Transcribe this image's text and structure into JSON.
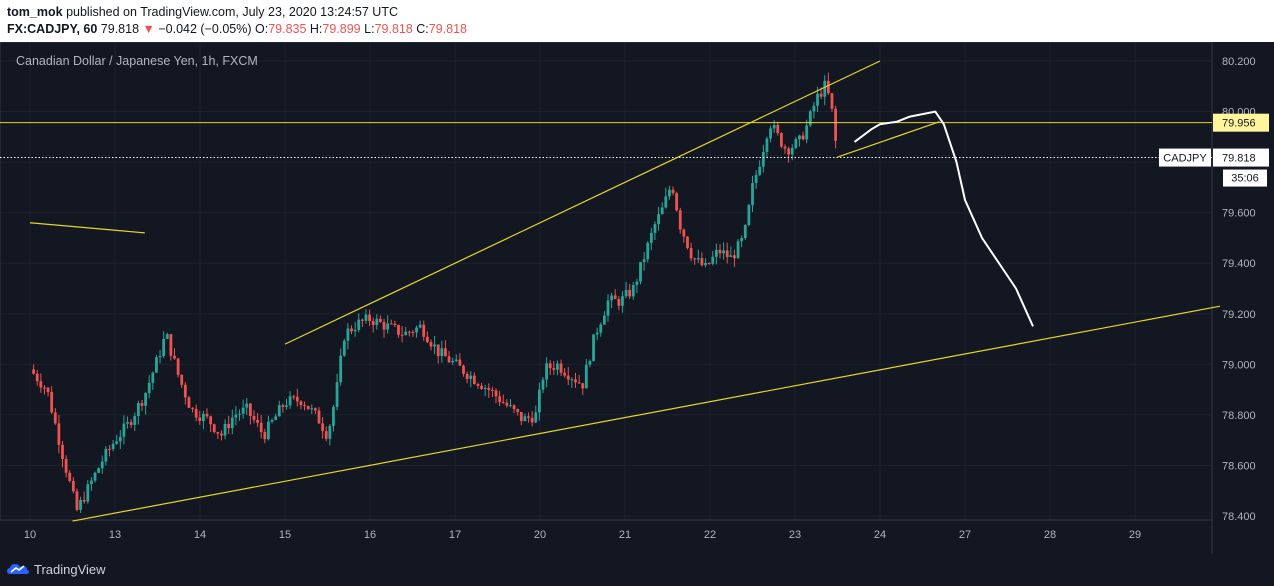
{
  "header": {
    "author": "tom_mok",
    "published_text": "published on TradingView.com, July 23, 2020 13:24:57 UTC",
    "symbol_interval": "FX:CADJPY, 60",
    "last": "79.818",
    "arrow": "▼",
    "change": "−0.042 (−0.05%)",
    "o_label": "O:",
    "o_val": "79.835",
    "h_label": "H:",
    "h_val": "79.899",
    "l_label": "L:",
    "l_val": "79.818",
    "c_label": "C:",
    "c_val": "79.818"
  },
  "footer": {
    "brand": "TradingView"
  },
  "chart_data": {
    "type": "candlestick",
    "title": "Canadian Dollar / Japanese Yen, 1h, FXCM",
    "ylim": [
      78.37,
      80.27
    ],
    "y_ticks": [
      "80.200",
      "80.000",
      "79.800",
      "79.600",
      "79.400",
      "79.200",
      "79.000",
      "78.800",
      "78.600",
      "78.400"
    ],
    "y_tick_values": [
      80.2,
      80.0,
      79.8,
      79.6,
      79.4,
      79.2,
      79.0,
      78.8,
      78.6,
      78.4
    ],
    "x_ticks": [
      {
        "label": "10",
        "i": 0
      },
      {
        "label": "13",
        "i": 1
      },
      {
        "label": "14",
        "i": 2
      },
      {
        "label": "15",
        "i": 3
      },
      {
        "label": "16",
        "i": 4
      },
      {
        "label": "17",
        "i": 5
      },
      {
        "label": "20",
        "i": 6
      },
      {
        "label": "21",
        "i": 7
      },
      {
        "label": "22",
        "i": 8
      },
      {
        "label": "23",
        "i": 9
      },
      {
        "label": "24",
        "i": 10
      },
      {
        "label": "27",
        "i": 11
      },
      {
        "label": "28",
        "i": 12
      },
      {
        "label": "29",
        "i": 13
      }
    ],
    "price_path": [
      [
        0.0,
        78.98
      ],
      [
        0.2,
        78.9
      ],
      [
        0.4,
        78.62
      ],
      [
        0.55,
        78.42
      ],
      [
        0.7,
        78.52
      ],
      [
        0.85,
        78.62
      ],
      [
        1.0,
        78.7
      ],
      [
        1.15,
        78.76
      ],
      [
        1.35,
        78.88
      ],
      [
        1.5,
        79.02
      ],
      [
        1.6,
        79.12
      ],
      [
        1.75,
        78.95
      ],
      [
        1.9,
        78.82
      ],
      [
        2.1,
        78.78
      ],
      [
        2.25,
        78.72
      ],
      [
        2.4,
        78.8
      ],
      [
        2.55,
        78.82
      ],
      [
        2.75,
        78.72
      ],
      [
        3.0,
        78.85
      ],
      [
        3.2,
        78.86
      ],
      [
        3.4,
        78.78
      ],
      [
        3.5,
        78.72
      ],
      [
        3.6,
        78.88
      ],
      [
        3.7,
        79.12
      ],
      [
        3.85,
        79.16
      ],
      [
        4.0,
        79.18
      ],
      [
        4.2,
        79.15
      ],
      [
        4.4,
        79.12
      ],
      [
        4.6,
        79.15
      ],
      [
        4.8,
        79.05
      ],
      [
        5.0,
        79.0
      ],
      [
        5.2,
        78.95
      ],
      [
        5.4,
        78.9
      ],
      [
        5.6,
        78.84
      ],
      [
        5.8,
        78.78
      ],
      [
        5.95,
        78.8
      ],
      [
        6.05,
        78.98
      ],
      [
        6.2,
        79.0
      ],
      [
        6.35,
        78.96
      ],
      [
        6.5,
        78.92
      ],
      [
        6.65,
        79.12
      ],
      [
        6.8,
        79.25
      ],
      [
        6.95,
        79.25
      ],
      [
        7.1,
        79.3
      ],
      [
        7.25,
        79.45
      ],
      [
        7.35,
        79.55
      ],
      [
        7.45,
        79.62
      ],
      [
        7.55,
        79.72
      ],
      [
        7.65,
        79.55
      ],
      [
        7.8,
        79.42
      ],
      [
        7.95,
        79.38
      ],
      [
        8.1,
        79.45
      ],
      [
        8.25,
        79.42
      ],
      [
        8.4,
        79.5
      ],
      [
        8.5,
        79.7
      ],
      [
        8.6,
        79.82
      ],
      [
        8.7,
        79.96
      ],
      [
        8.8,
        79.9
      ],
      [
        8.9,
        79.85
      ],
      [
        9.05,
        79.88
      ],
      [
        9.15,
        79.95
      ],
      [
        9.25,
        80.05
      ],
      [
        9.35,
        80.1
      ],
      [
        9.42,
        80.04
      ],
      [
        9.5,
        79.818
      ]
    ],
    "lines": {
      "resistance_price": 79.956,
      "last_price": 79.818,
      "upper_channel": [
        [
          3.0,
          79.08
        ],
        [
          10.0,
          80.2
        ]
      ],
      "lower_channel": [
        [
          0.5,
          78.38
        ],
        [
          14.0,
          79.23
        ]
      ],
      "short_line_left": [
        [
          0.0,
          79.56
        ],
        [
          1.35,
          79.52
        ]
      ],
      "flag_line": [
        [
          9.5,
          79.82
        ],
        [
          10.7,
          79.96
        ]
      ],
      "projection": [
        [
          9.7,
          79.88
        ],
        [
          9.9,
          79.93
        ],
        [
          10.0,
          79.95
        ],
        [
          10.2,
          79.96
        ],
        [
          10.35,
          79.98
        ],
        [
          10.5,
          79.99
        ],
        [
          10.65,
          80.0
        ],
        [
          10.75,
          79.95
        ],
        [
          10.9,
          79.8
        ],
        [
          11.0,
          79.65
        ],
        [
          11.2,
          79.5
        ],
        [
          11.6,
          79.3
        ],
        [
          11.8,
          79.15
        ]
      ]
    },
    "price_labels": {
      "resistance": "79.956",
      "symbol": "CADJPY",
      "last": "79.818",
      "countdown": "35:06"
    }
  }
}
